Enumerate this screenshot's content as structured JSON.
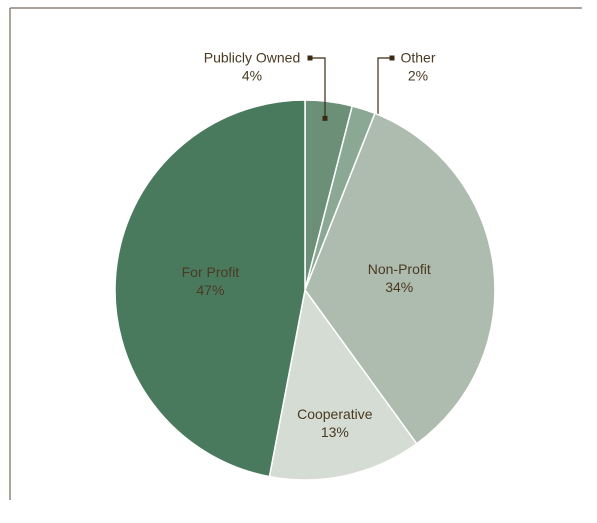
{
  "chart_data": {
    "type": "pie",
    "categories": [
      "Publicly Owned",
      "Other",
      "Non-Profit",
      "Cooperative",
      "For Profit"
    ],
    "values": [
      4,
      2,
      34,
      13,
      47
    ],
    "value_labels": [
      "4%",
      "2%",
      "34%",
      "13%",
      "47%"
    ],
    "colors": [
      "#6b9077",
      "#8aa893",
      "#aebcaf",
      "#d4dcd3",
      "#4a7a5e"
    ]
  }
}
